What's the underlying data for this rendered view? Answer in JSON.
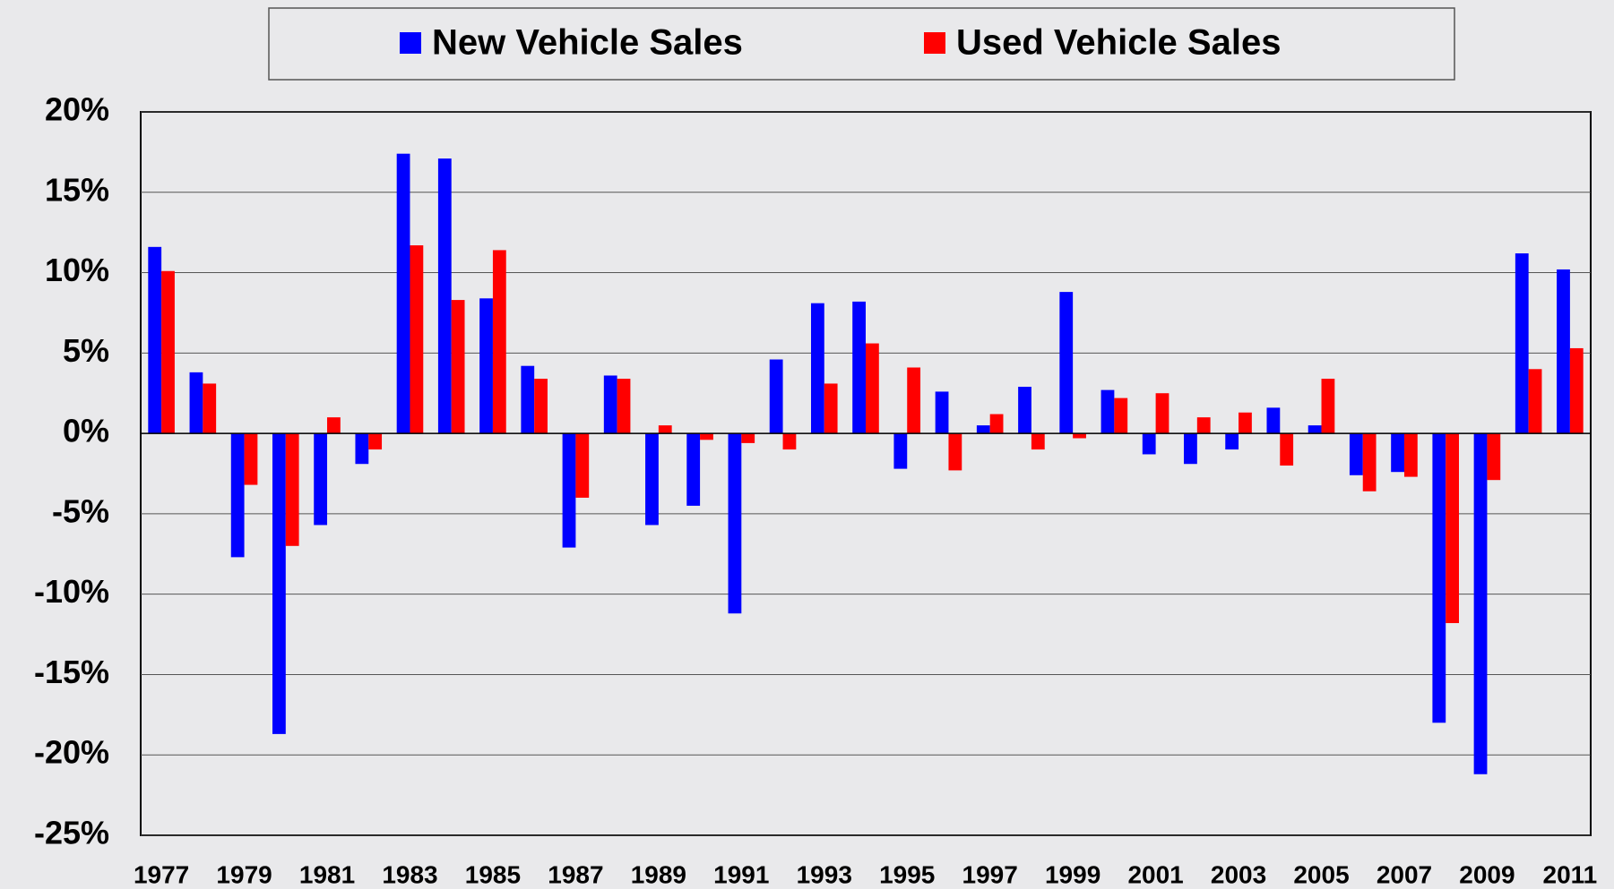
{
  "chart_data": {
    "type": "bar",
    "categories": [
      "1977",
      null,
      "1979",
      null,
      "1981",
      null,
      "1983",
      null,
      "1985",
      null,
      "1987",
      null,
      "1989",
      null,
      "1991",
      null,
      "1993",
      null,
      "1995",
      null,
      "1997",
      null,
      "1999",
      null,
      "2001",
      null,
      "2003",
      null,
      "2005",
      null,
      "2007",
      null,
      "2009",
      null,
      "2011"
    ],
    "series": [
      {
        "name": "New Vehicle Sales",
        "color": "#0000ff",
        "values": [
          11.6,
          3.8,
          -7.7,
          -18.7,
          -5.7,
          -1.9,
          17.4,
          17.1,
          8.4,
          4.2,
          -7.1,
          3.6,
          -5.7,
          -4.5,
          -11.2,
          4.6,
          8.1,
          8.2,
          -2.2,
          2.6,
          0.5,
          2.9,
          8.8,
          2.7,
          -1.3,
          -1.9,
          -1.0,
          1.6,
          0.5,
          -2.6,
          -2.4,
          -18.0,
          -21.2,
          11.2,
          10.2
        ]
      },
      {
        "name": "Used Vehicle Sales",
        "color": "#ff0000",
        "values": [
          10.1,
          3.1,
          -3.2,
          -7.0,
          1.0,
          -1.0,
          11.7,
          8.3,
          11.4,
          3.4,
          -4.0,
          3.4,
          0.5,
          -0.4,
          -0.6,
          -1.0,
          3.1,
          5.6,
          4.1,
          -2.3,
          1.2,
          -1.0,
          -0.3,
          2.2,
          2.5,
          1.0,
          1.3,
          -2.0,
          3.4,
          -3.6,
          -2.7,
          -11.8,
          -2.9,
          4.0,
          5.3
        ]
      }
    ],
    "ylim": [
      -25,
      20
    ],
    "yticks": [
      {
        "value": -25,
        "label": "-25%"
      },
      {
        "value": -20,
        "label": "-20%"
      },
      {
        "value": -15,
        "label": "-15%"
      },
      {
        "value": -10,
        "label": "-10%"
      },
      {
        "value": -5,
        "label": "-5%"
      },
      {
        "value": 0,
        "label": "0%"
      },
      {
        "value": 5,
        "label": "5%"
      },
      {
        "value": 10,
        "label": "10%"
      },
      {
        "value": 15,
        "label": "15%"
      },
      {
        "value": 20,
        "label": "20%"
      }
    ],
    "grid": true,
    "legend": "top"
  }
}
